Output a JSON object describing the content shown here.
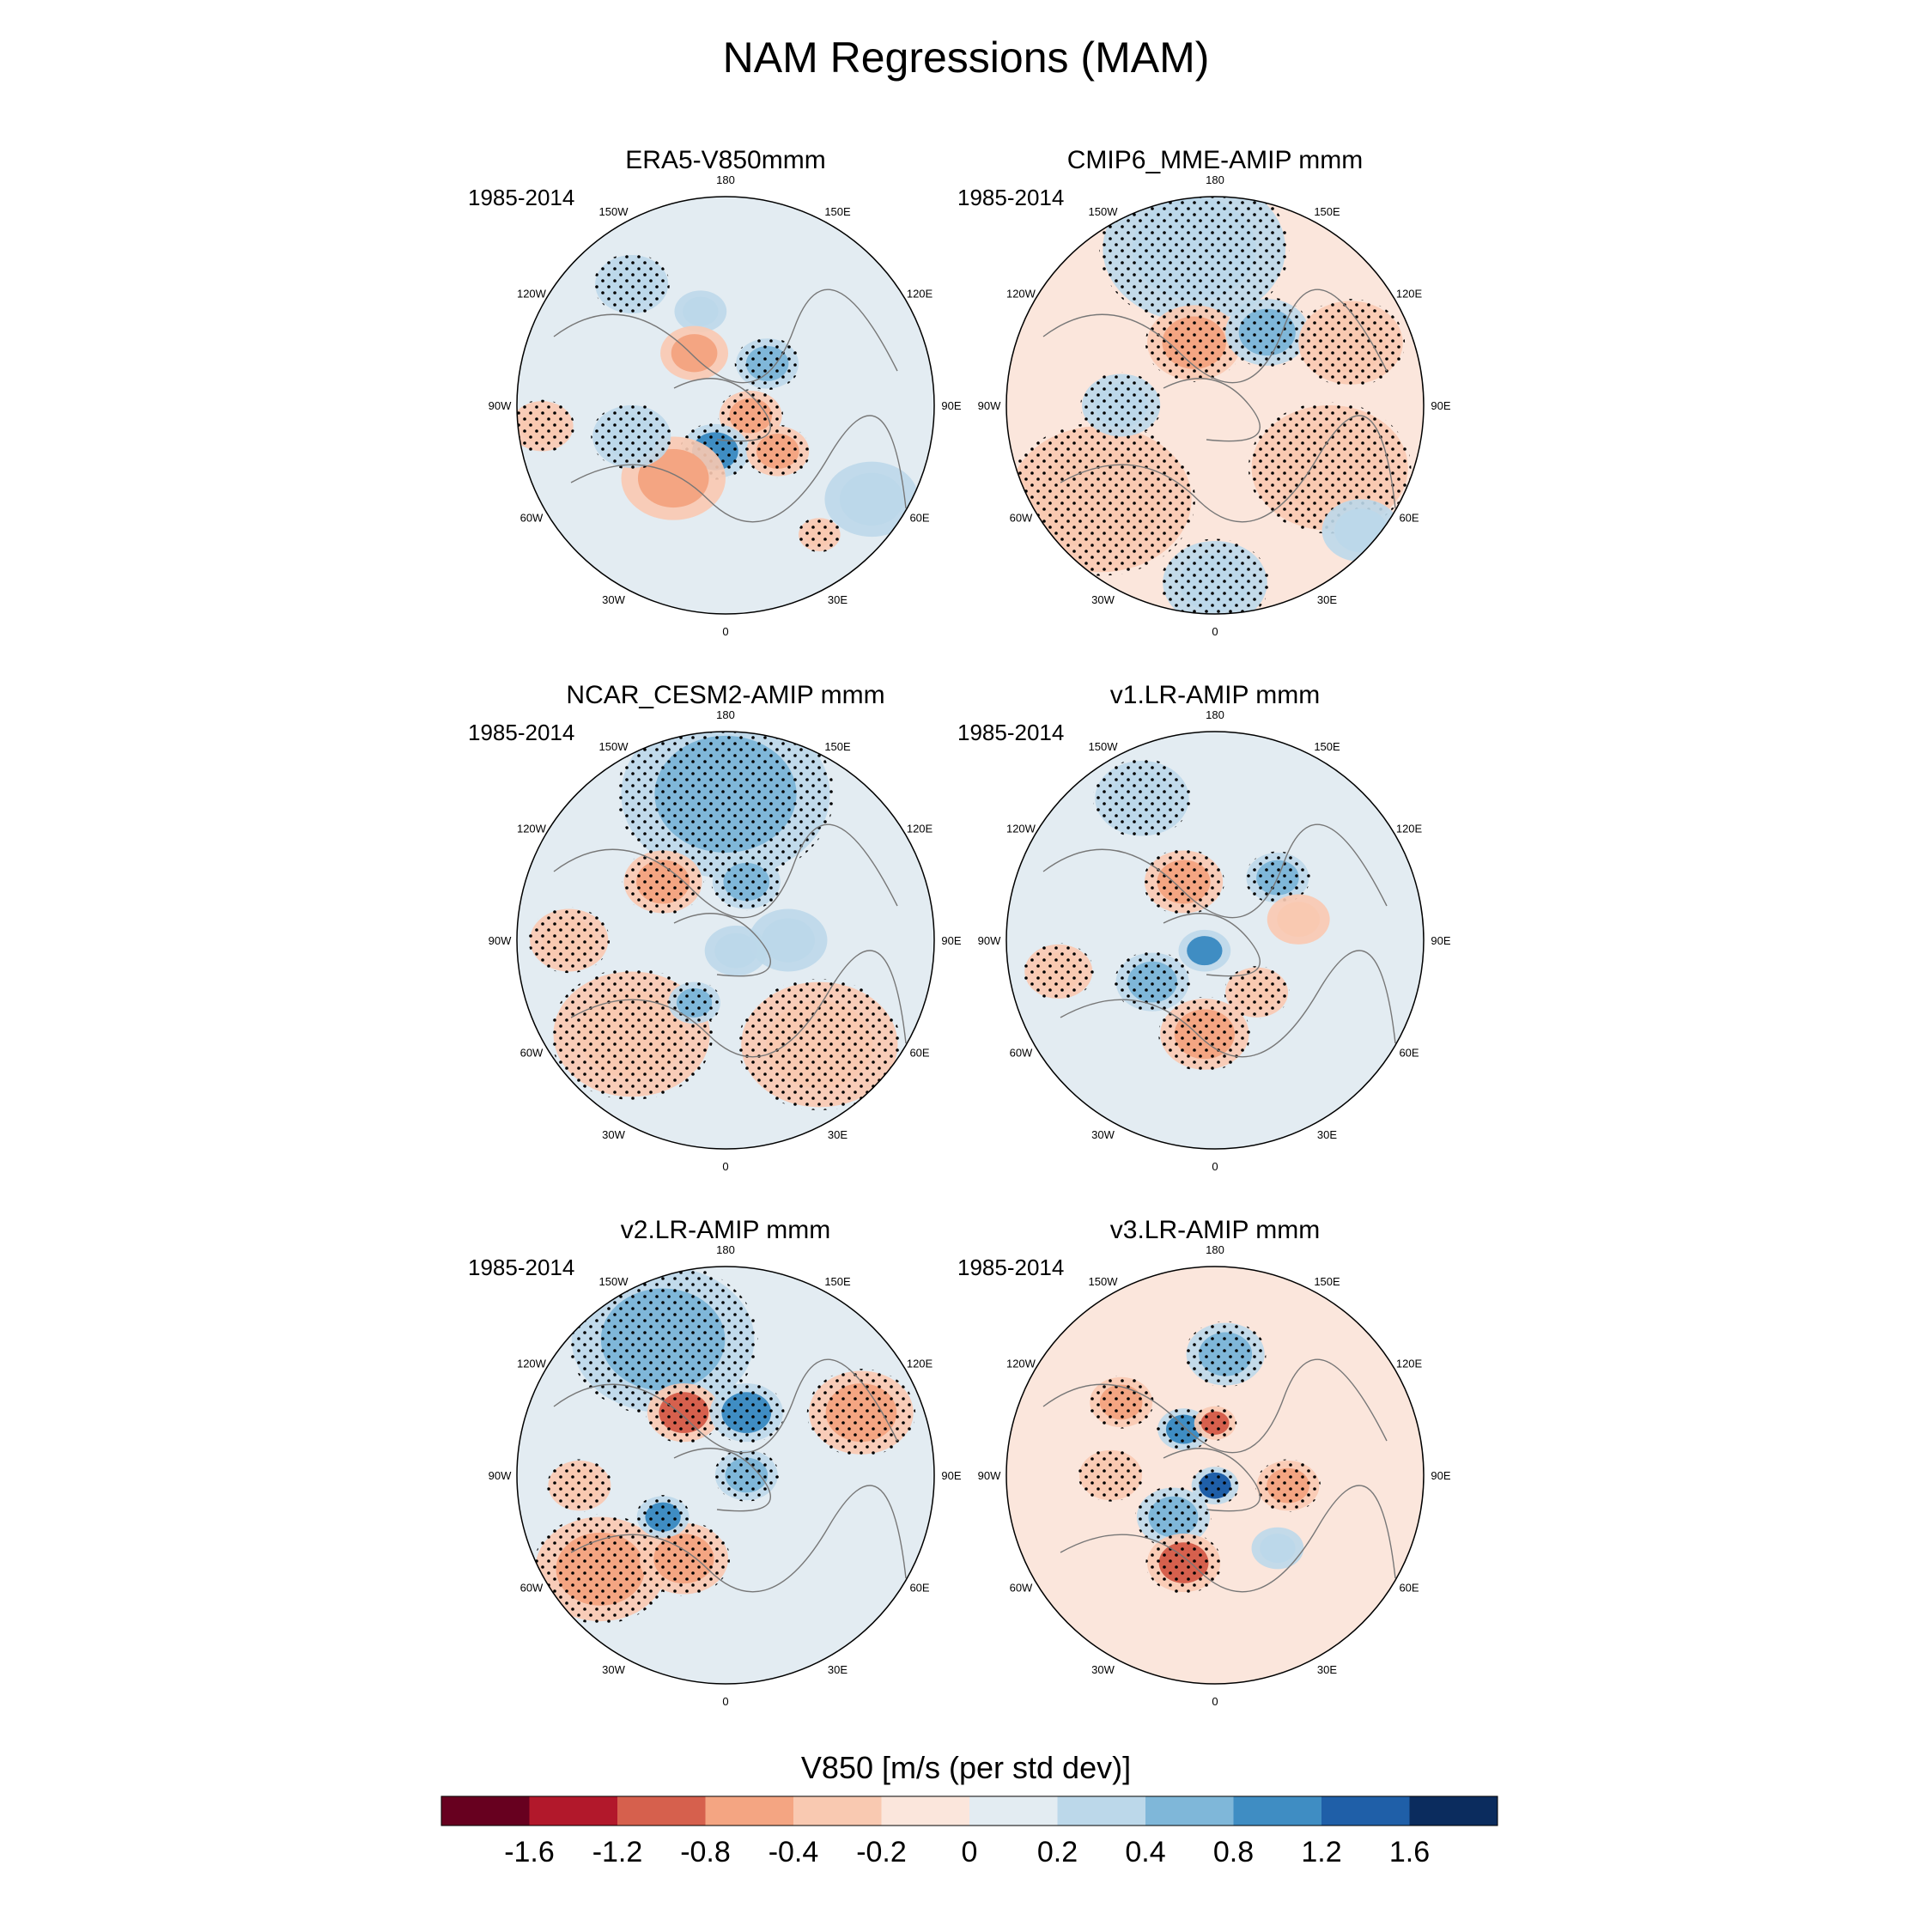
{
  "figure": {
    "title": "NAM Regressions (MAM)"
  },
  "panels": [
    {
      "title": "ERA5-V850mmm",
      "period": "1985-2014"
    },
    {
      "title": "CMIP6_MME-AMIP  mmm",
      "period": "1985-2014"
    },
    {
      "title": "NCAR_CESM2-AMIP  mmm",
      "period": "1985-2014"
    },
    {
      "title": "v1.LR-AMIP  mmm",
      "period": "1985-2014"
    },
    {
      "title": "v2.LR-AMIP  mmm",
      "period": "1985-2014"
    },
    {
      "title": "v3.LR-AMIP  mmm",
      "period": "1985-2014"
    }
  ],
  "longitude_labels": [
    "180",
    "150E",
    "120E",
    "90E",
    "60E",
    "30E",
    "0",
    "30W",
    "60W",
    "90W",
    "120W",
    "150W"
  ],
  "colorbar": {
    "title": "V850 [m/s (per std dev)]",
    "tick_labels": [
      "-1.6",
      "-1.2",
      "-0.8",
      "-0.4",
      "-0.2",
      "0",
      "0.2",
      "0.4",
      "0.8",
      "1.2",
      "1.6"
    ],
    "colors": [
      "#67001f",
      "#b2182b",
      "#d6604d",
      "#f4a582",
      "#f9c9b1",
      "#fbe6dc",
      "#e3ecf2",
      "#bcd8ea",
      "#7fb7d9",
      "#3f8dc3",
      "#1f5fa8",
      "#0b2c5e"
    ]
  },
  "chart_data": {
    "type": "heatmap",
    "title": "NAM Regressions (MAM)",
    "projection": "north polar stereographic",
    "variable": "V850 [m/s (per std dev)]",
    "levels": [
      -1.6,
      -1.2,
      -0.8,
      -0.4,
      -0.2,
      0,
      0.2,
      0.4,
      0.8,
      1.2,
      1.6
    ],
    "panels": [
      "ERA5-V850mmm",
      "CMIP6_MME-AMIP  mmm",
      "NCAR_CESM2-AMIP  mmm",
      "v1.LR-AMIP  mmm",
      "v2.LR-AMIP  mmm",
      "v3.LR-AMIP  mmm"
    ],
    "period": "1985-2014"
  }
}
